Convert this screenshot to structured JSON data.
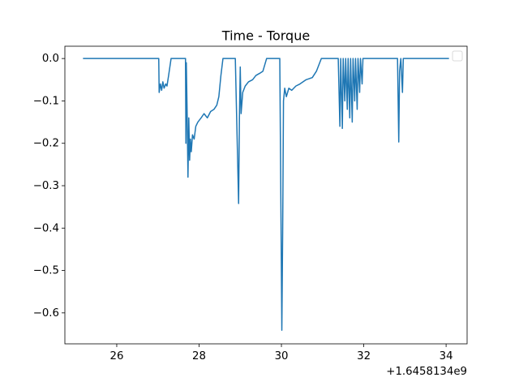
{
  "chart_data": {
    "type": "line",
    "title": "Time - Torque",
    "x_offset_label": "+1.6458134e9",
    "legend": "upper right",
    "xlim": [
      24.74,
      34.51
    ],
    "xticks": [
      26,
      28,
      30,
      32,
      34
    ],
    "ylim": [
      -0.673,
      0.029
    ],
    "yticks": [
      {
        "value": 0,
        "label": "0.0"
      },
      {
        "value": -0.1,
        "label": "−0.1"
      },
      {
        "value": -0.2,
        "label": "−0.2"
      },
      {
        "value": -0.3,
        "label": "−0.3"
      },
      {
        "value": -0.4,
        "label": "−0.4"
      },
      {
        "value": -0.5,
        "label": "−0.5"
      },
      {
        "value": -0.6,
        "label": "−0.6"
      }
    ],
    "series": [
      {
        "color": "#1f77b4",
        "x": [
          25.18,
          27.02,
          27.03,
          27.06,
          27.09,
          27.12,
          27.15,
          27.19,
          27.22,
          27.26,
          27.32,
          27.67,
          27.68,
          27.69,
          27.71,
          27.73,
          27.75,
          27.77,
          27.79,
          27.81,
          27.84,
          27.88,
          27.92,
          27.97,
          28.05,
          28.12,
          28.2,
          28.28,
          28.36,
          28.43,
          28.48,
          28.53,
          28.58,
          28.88,
          28.96,
          28.98,
          29.0,
          29.02,
          29.06,
          29.12,
          29.2,
          29.3,
          29.38,
          29.47,
          29.55,
          29.64,
          29.96,
          30.01,
          30.03,
          30.05,
          30.08,
          30.12,
          30.18,
          30.25,
          30.35,
          30.45,
          30.6,
          30.75,
          30.85,
          30.97,
          31.38,
          31.42,
          31.44,
          31.48,
          31.5,
          31.54,
          31.56,
          31.6,
          31.62,
          31.66,
          31.68,
          31.72,
          31.74,
          31.78,
          31.8,
          31.84,
          31.86,
          31.9,
          31.92,
          31.96,
          31.98,
          32.82,
          32.85,
          32.87,
          32.9,
          32.94,
          32.96,
          34.07
        ],
        "values": [
          0,
          0,
          -0.08,
          -0.06,
          -0.075,
          -0.055,
          -0.07,
          -0.06,
          -0.065,
          -0.04,
          0,
          0,
          -0.2,
          -0.01,
          -0.13,
          -0.28,
          -0.14,
          -0.24,
          -0.19,
          -0.22,
          -0.18,
          -0.19,
          -0.16,
          -0.15,
          -0.14,
          -0.13,
          -0.14,
          -0.125,
          -0.12,
          -0.11,
          -0.09,
          -0.04,
          0,
          0,
          -0.342,
          -0.14,
          -0.02,
          -0.13,
          -0.08,
          -0.065,
          -0.055,
          -0.05,
          -0.04,
          -0.035,
          -0.03,
          0,
          0,
          -0.641,
          -0.41,
          -0.1,
          -0.07,
          -0.09,
          -0.07,
          -0.075,
          -0.065,
          -0.06,
          -0.05,
          -0.045,
          -0.03,
          0,
          0,
          -0.16,
          0,
          -0.165,
          0,
          -0.1,
          0,
          -0.12,
          0,
          -0.14,
          0,
          -0.15,
          0,
          -0.1,
          0,
          -0.12,
          0,
          -0.08,
          0,
          -0.06,
          0,
          0,
          -0.197,
          -0.03,
          0,
          -0.08,
          0,
          0
        ]
      }
    ]
  }
}
